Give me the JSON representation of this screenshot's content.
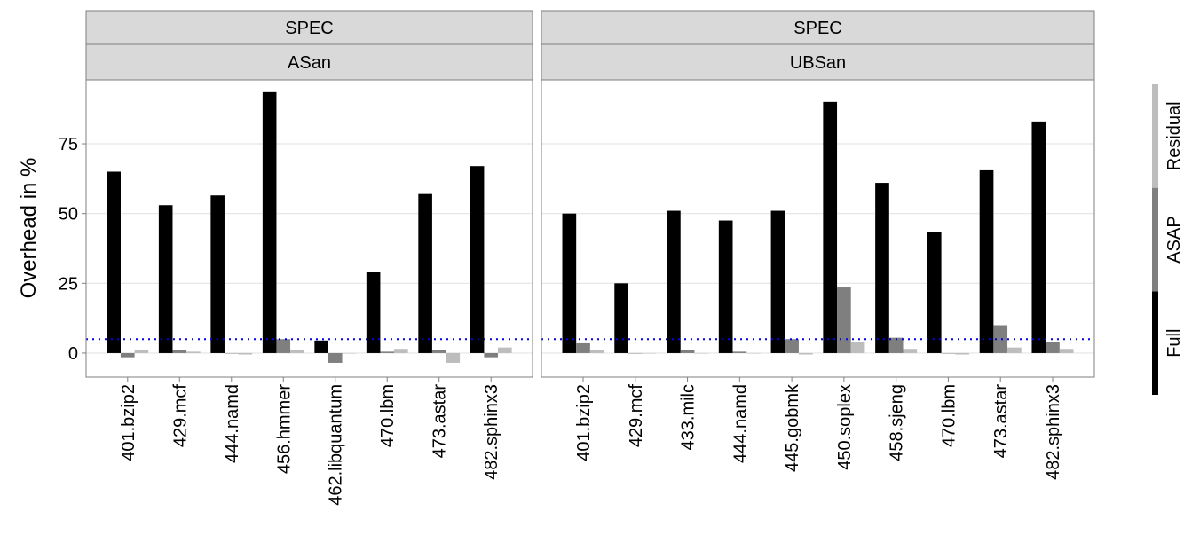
{
  "chart_data": {
    "type": "bar",
    "ylabel": "Overhead in %",
    "ylim": [
      -8.6,
      97.9
    ],
    "yticks": [
      0,
      25,
      50,
      75
    ],
    "grid": true,
    "hline": 5,
    "hline_color": "#0000ee",
    "series": [
      {
        "name": "Full",
        "color": "#000000"
      },
      {
        "name": "ASAP",
        "color": "#7f7f7f"
      },
      {
        "name": "Residual",
        "color": "#bdbdbd"
      }
    ],
    "facets": [
      {
        "strip_top": "SPEC",
        "strip": "ASan",
        "categories": [
          "401.bzip2",
          "429.mcf",
          "444.namd",
          "456.hmmer",
          "462.libquantum",
          "470.lbm",
          "473.astar",
          "482.sphinx3"
        ],
        "series": [
          {
            "values": [
              65,
              53,
              56.5,
              93.5,
              4.5,
              29,
              57,
              67
            ]
          },
          {
            "values": [
              -1.5,
              1,
              0,
              5,
              -3.5,
              0.5,
              1,
              -1.5
            ]
          },
          {
            "values": [
              1,
              0.5,
              -0.5,
              1,
              0,
              1.5,
              -3.5,
              2
            ]
          }
        ]
      },
      {
        "strip_top": "SPEC",
        "strip": "UBSan",
        "categories": [
          "401.bzip2",
          "429.mcf",
          "433.milc",
          "444.namd",
          "445.gobmk",
          "450.soplex",
          "458.sjeng",
          "470.lbm",
          "473.astar",
          "482.sphinx3"
        ],
        "series": [
          {
            "values": [
              50,
              25,
              51,
              47.5,
              51,
              90,
              61,
              43.5,
              65.5,
              83
            ]
          },
          {
            "values": [
              3.5,
              0,
              1,
              0.5,
              5,
              23.5,
              5.5,
              0,
              10,
              4
            ]
          },
          {
            "values": [
              1,
              0,
              0,
              0,
              -0.5,
              4,
              1.5,
              -0.5,
              2,
              1.5
            ]
          }
        ]
      }
    ]
  }
}
